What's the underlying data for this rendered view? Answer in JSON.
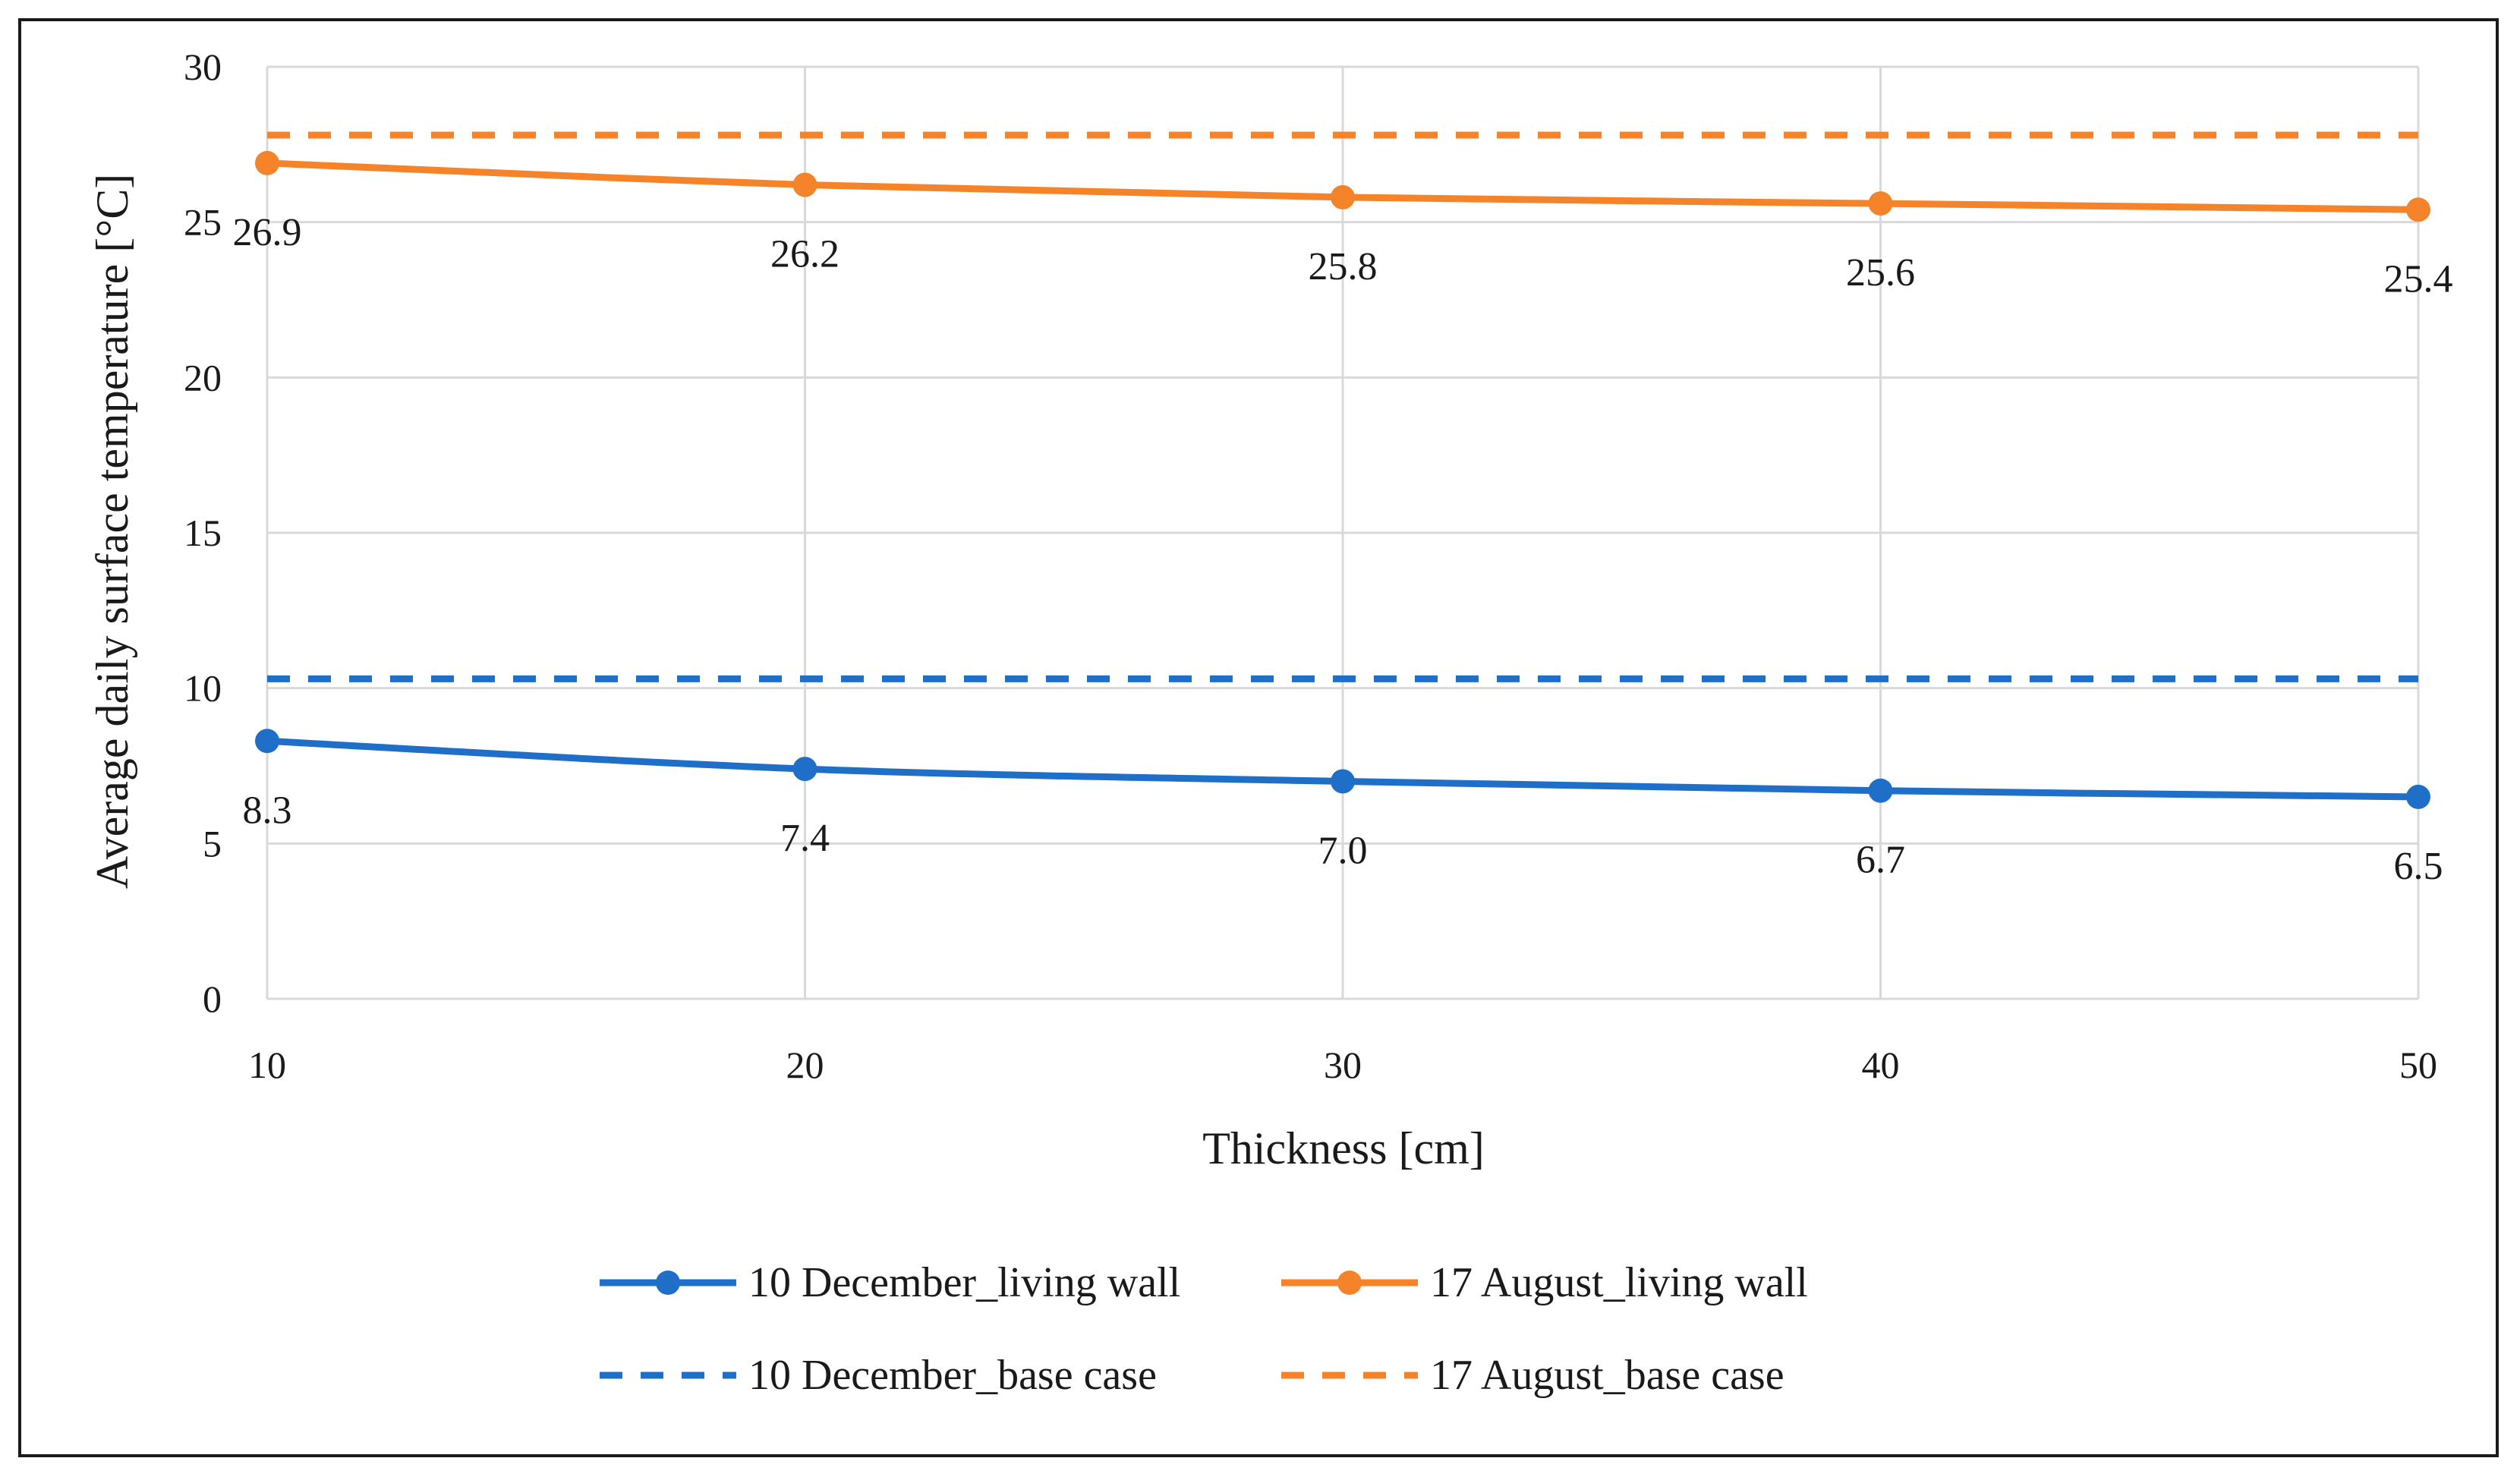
{
  "chart_data": {
    "type": "line",
    "xlabel": "Thickness  [cm]",
    "ylabel": "Average daily surface temperature [°C]",
    "x": [
      10,
      20,
      30,
      40,
      50
    ],
    "xlim": [
      10,
      50
    ],
    "ylim": [
      0,
      30
    ],
    "yticks": [
      0,
      5,
      10,
      15,
      20,
      25,
      30
    ],
    "grid": true,
    "legend_position": "bottom",
    "series": [
      {
        "name": "10 December_living wall",
        "color": "#1f6fc9",
        "style": "solid-markers",
        "values": [
          8.3,
          7.4,
          7.0,
          6.7,
          6.5
        ],
        "labels": [
          "8.3",
          "7.4",
          "7.0",
          "6.7",
          "6.5"
        ]
      },
      {
        "name": "17 August_living wall",
        "color": "#f5832a",
        "style": "solid-markers",
        "values": [
          26.9,
          26.2,
          25.8,
          25.6,
          25.4
        ],
        "labels": [
          "26.9",
          "26.2",
          "25.8",
          "25.6",
          "25.4"
        ]
      },
      {
        "name": "10 December_base case",
        "color": "#1f6fc9",
        "style": "dashed",
        "values": [
          10.3,
          10.3,
          10.3,
          10.3,
          10.3
        ]
      },
      {
        "name": "17 August_base case",
        "color": "#f5832a",
        "style": "dashed",
        "values": [
          27.8,
          27.8,
          27.8,
          27.8,
          27.8
        ]
      }
    ]
  }
}
